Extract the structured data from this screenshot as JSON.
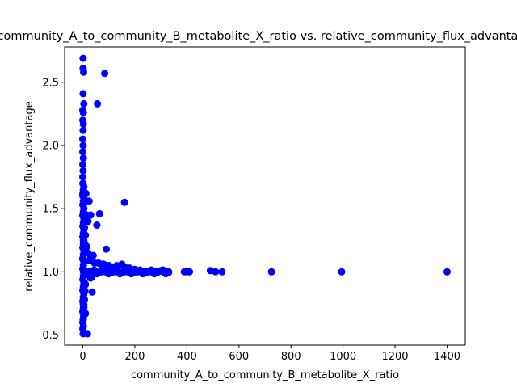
{
  "chart_data": {
    "type": "scatter",
    "title": "community_A_to_community_B_metabolite_X_ratio vs. relative_community_flux_advantage",
    "xlabel": "community_A_to_community_B_metabolite_X_ratio",
    "ylabel": "relative_community_flux_advantage",
    "xlim": [
      -70,
      1470
    ],
    "ylim": [
      0.42,
      2.78
    ],
    "xticks": [
      0,
      200,
      400,
      600,
      800,
      1000,
      1200,
      1400
    ],
    "yticks": [
      0.5,
      1.0,
      1.5,
      2.0,
      2.5
    ],
    "ytick_labels": [
      "0.5",
      "1.0",
      "1.5",
      "2.0",
      "2.5"
    ],
    "grid": false,
    "marker_color": "#0000ff",
    "points": [
      [
        1,
        2.69
      ],
      [
        1,
        2.61
      ],
      [
        3,
        2.58
      ],
      [
        84,
        2.57
      ],
      [
        56,
        2.33
      ],
      [
        4,
        2.33
      ],
      [
        1,
        2.41
      ],
      [
        0,
        2.28
      ],
      [
        2,
        2.26
      ],
      [
        0,
        2.2
      ],
      [
        2,
        2.17
      ],
      [
        1,
        2.12
      ],
      [
        0,
        2.05
      ],
      [
        1,
        2.0
      ],
      [
        0,
        1.95
      ],
      [
        2,
        1.9
      ],
      [
        0,
        1.85
      ],
      [
        1,
        1.8
      ],
      [
        0,
        1.75
      ],
      [
        1,
        1.7
      ],
      [
        2,
        1.65
      ],
      [
        0,
        1.6
      ],
      [
        12,
        1.62
      ],
      [
        4,
        1.58
      ],
      [
        8,
        1.55
      ],
      [
        24,
        1.56
      ],
      [
        160,
        1.55
      ],
      [
        64,
        1.46
      ],
      [
        54,
        1.37
      ],
      [
        14,
        1.45
      ],
      [
        20,
        1.4
      ],
      [
        30,
        1.45
      ],
      [
        6,
        1.35
      ],
      [
        3,
        1.3
      ],
      [
        10,
        1.29
      ],
      [
        90,
        1.18
      ],
      [
        2,
        1.25
      ],
      [
        15,
        1.2
      ],
      [
        8,
        1.22
      ],
      [
        20,
        1.15
      ],
      [
        30,
        1.12
      ],
      [
        40,
        1.13
      ],
      [
        0,
        1.1
      ],
      [
        5,
        1.08
      ],
      [
        25,
        1.09
      ],
      [
        45,
        1.07
      ],
      [
        60,
        1.07
      ],
      [
        70,
        1.06
      ],
      [
        80,
        1.06
      ],
      [
        100,
        1.05
      ],
      [
        110,
        1.04
      ],
      [
        130,
        1.05
      ],
      [
        150,
        1.06
      ],
      [
        160,
        1.04
      ],
      [
        180,
        1.03
      ],
      [
        200,
        1.02
      ],
      [
        220,
        1.01
      ],
      [
        240,
        1.0
      ],
      [
        260,
        1.0
      ],
      [
        280,
        1.0
      ],
      [
        300,
        1.01
      ],
      [
        320,
        1.0
      ],
      [
        330,
        1.0
      ],
      [
        390,
        1.0
      ],
      [
        400,
        1.0
      ],
      [
        410,
        1.0
      ],
      [
        490,
        1.01
      ],
      [
        510,
        1.0
      ],
      [
        535,
        1.0
      ],
      [
        725,
        1.0
      ],
      [
        995,
        1.0
      ],
      [
        1400,
        1.0
      ],
      [
        2,
        1.0
      ],
      [
        10,
        1.0
      ],
      [
        20,
        1.0
      ],
      [
        35,
        0.99
      ],
      [
        50,
        1.0
      ],
      [
        65,
        1.0
      ],
      [
        85,
        1.0
      ],
      [
        120,
        1.0
      ],
      [
        140,
        1.0
      ],
      [
        170,
        1.0
      ],
      [
        190,
        1.0
      ],
      [
        210,
        1.0
      ],
      [
        230,
        1.0
      ],
      [
        250,
        1.0
      ],
      [
        270,
        1.0
      ],
      [
        290,
        1.0
      ],
      [
        310,
        1.0
      ],
      [
        15,
        0.98
      ],
      [
        25,
        0.97
      ],
      [
        35,
        0.96
      ],
      [
        30,
        0.95
      ],
      [
        36,
        0.84
      ],
      [
        5,
        0.92
      ],
      [
        10,
        0.9
      ],
      [
        3,
        0.88
      ],
      [
        8,
        0.85
      ],
      [
        2,
        0.8
      ],
      [
        6,
        0.78
      ],
      [
        1,
        0.75
      ],
      [
        4,
        0.72
      ],
      [
        2,
        0.7
      ],
      [
        6,
        0.68
      ],
      [
        10,
        0.67
      ],
      [
        3,
        0.65
      ],
      [
        1,
        0.62
      ],
      [
        0,
        0.6
      ],
      [
        2,
        0.57
      ],
      [
        0,
        0.55
      ],
      [
        1,
        0.51
      ],
      [
        18,
        0.51
      ]
    ]
  }
}
